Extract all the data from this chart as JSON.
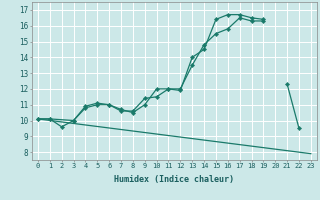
{
  "xlabel": "Humidex (Indice chaleur)",
  "bg_color": "#cce8e8",
  "grid_color": "#ffffff",
  "line_color": "#1a7a6a",
  "xlim": [
    -0.5,
    23.5
  ],
  "ylim": [
    7.5,
    17.5
  ],
  "xticks": [
    0,
    1,
    2,
    3,
    4,
    5,
    6,
    7,
    8,
    9,
    10,
    11,
    12,
    13,
    14,
    15,
    16,
    17,
    18,
    19,
    20,
    21,
    22,
    23
  ],
  "yticks": [
    8,
    9,
    10,
    11,
    12,
    13,
    14,
    15,
    16,
    17
  ],
  "line1_x": [
    0,
    1,
    2,
    3,
    4,
    5,
    6,
    7,
    8,
    9,
    10,
    11,
    12,
    13,
    14,
    15,
    16,
    17,
    18,
    19,
    21,
    22
  ],
  "line1_y": [
    10.1,
    10.1,
    9.6,
    10.0,
    10.8,
    11.0,
    11.0,
    10.7,
    10.5,
    11.0,
    12.0,
    12.0,
    11.9,
    14.0,
    14.5,
    16.4,
    16.7,
    16.7,
    16.5,
    16.4,
    12.3,
    9.5
  ],
  "line2_x": [
    0,
    1,
    3,
    4,
    5,
    6,
    7,
    8,
    9,
    10,
    11,
    12,
    13,
    14,
    15,
    16,
    17,
    18,
    19
  ],
  "line2_y": [
    10.1,
    10.1,
    10.0,
    10.9,
    11.1,
    11.0,
    10.6,
    10.6,
    11.4,
    11.5,
    12.0,
    12.0,
    13.5,
    14.8,
    15.5,
    15.8,
    16.5,
    16.3,
    16.3
  ],
  "line3_x": [
    0,
    23
  ],
  "line3_y": [
    10.1,
    7.9
  ]
}
